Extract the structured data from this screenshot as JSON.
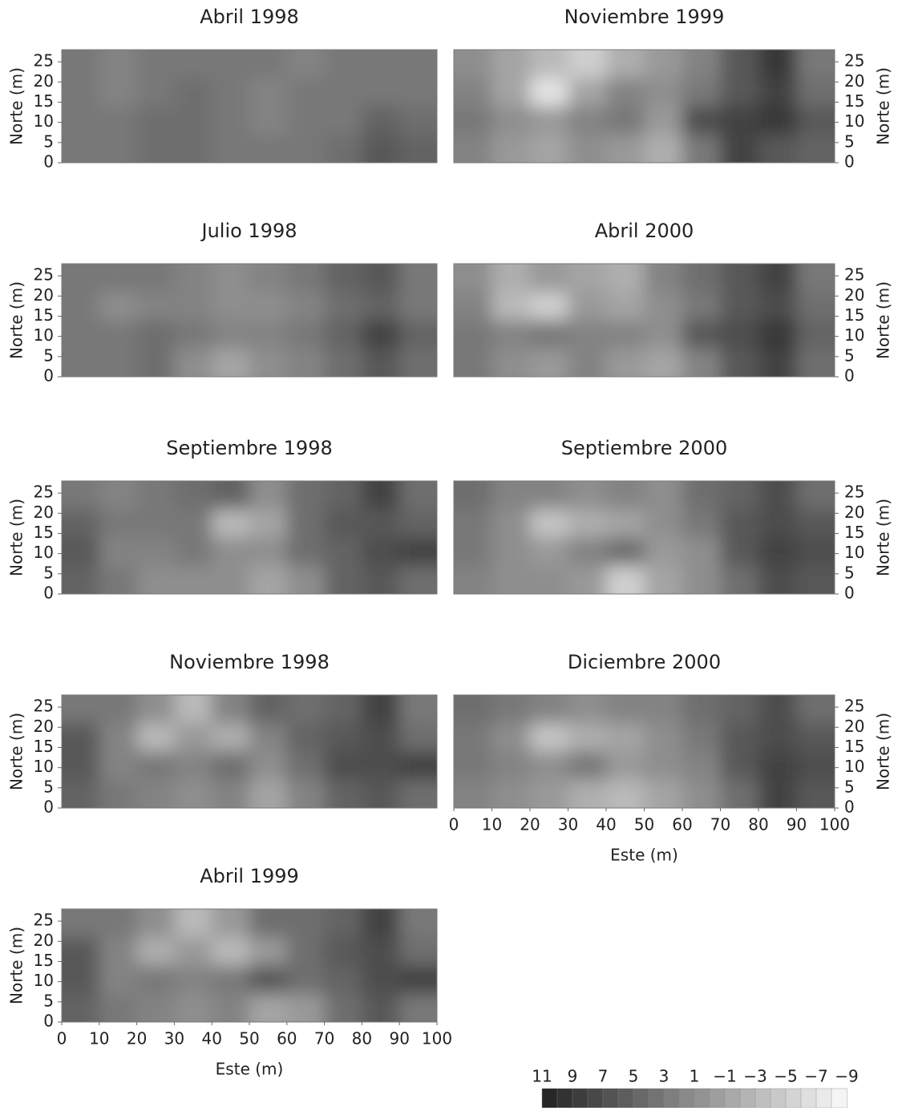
{
  "chart_data": [
    {
      "type": "contour",
      "title": "Abril 1998",
      "ylabel": "Norte (m)",
      "yaxis_side": "left",
      "xlim": [
        0,
        100
      ],
      "ylim": [
        0,
        28
      ],
      "yticks": [
        0,
        5,
        10,
        15,
        20,
        25
      ],
      "z": [
        [
          3,
          2,
          3,
          3,
          3,
          3,
          2,
          3,
          3,
          3
        ],
        [
          3,
          2,
          3,
          4,
          3,
          2,
          3,
          3,
          3,
          3
        ],
        [
          3,
          3,
          4,
          4,
          3,
          2,
          3,
          3,
          5,
          4
        ],
        [
          3,
          3,
          4,
          4,
          3,
          3,
          3,
          4,
          6,
          5
        ]
      ]
    },
    {
      "type": "contour",
      "title": "Julio 1998",
      "ylabel": "Norte (m)",
      "yaxis_side": "left",
      "xlim": [
        0,
        100
      ],
      "ylim": [
        0,
        28
      ],
      "yticks": [
        0,
        5,
        10,
        15,
        20,
        25
      ],
      "z": [
        [
          3,
          3,
          3,
          2,
          1,
          2,
          3,
          5,
          6,
          3
        ],
        [
          3,
          1,
          2,
          2,
          1,
          1,
          2,
          4,
          5,
          3
        ],
        [
          3,
          3,
          4,
          3,
          2,
          2,
          3,
          5,
          8,
          5
        ],
        [
          3,
          3,
          4,
          1,
          -1,
          1,
          2,
          4,
          6,
          4
        ]
      ]
    },
    {
      "type": "contour",
      "title": "Septiembre 1998",
      "ylabel": "Norte (m)",
      "yaxis_side": "left",
      "xlim": [
        0,
        100
      ],
      "ylim": [
        0,
        28
      ],
      "yticks": [
        0,
        5,
        10,
        15,
        20,
        25
      ],
      "z": [
        [
          3,
          2,
          3,
          4,
          5,
          1,
          4,
          5,
          8,
          4
        ],
        [
          5,
          3,
          3,
          3,
          -3,
          -1,
          4,
          6,
          6,
          5
        ],
        [
          6,
          2,
          2,
          3,
          1,
          1,
          4,
          5,
          7,
          8
        ],
        [
          5,
          3,
          1,
          1,
          1,
          -1,
          1,
          5,
          6,
          4
        ]
      ]
    },
    {
      "type": "contour",
      "title": "Noviembre 1998",
      "ylabel": "Norte (m)",
      "yaxis_side": "left",
      "xlim": [
        0,
        100
      ],
      "ylim": [
        0,
        28
      ],
      "yticks": [
        0,
        5,
        10,
        15,
        20,
        25
      ],
      "z": [
        [
          3,
          3,
          1,
          -3,
          2,
          5,
          4,
          5,
          8,
          3
        ],
        [
          6,
          2,
          -3,
          0,
          -2,
          2,
          5,
          6,
          7,
          4
        ],
        [
          6,
          2,
          3,
          2,
          4,
          1,
          4,
          7,
          7,
          8
        ],
        [
          5,
          3,
          2,
          1,
          2,
          -1,
          2,
          5,
          6,
          4
        ]
      ]
    },
    {
      "type": "contour",
      "title": "Abril 1999",
      "ylabel": "Norte (m)",
      "xlabel": "Este (m)",
      "yaxis_side": "left",
      "xlim": [
        0,
        100
      ],
      "ylim": [
        0,
        28
      ],
      "yticks": [
        0,
        5,
        10,
        15,
        20,
        25
      ],
      "xticks": [
        0,
        10,
        20,
        30,
        40,
        50,
        60,
        70,
        80,
        90,
        100
      ],
      "z": [
        [
          3,
          3,
          1,
          -3,
          0,
          4,
          4,
          5,
          8,
          3
        ],
        [
          6,
          2,
          -2,
          0,
          -3,
          0,
          4,
          6,
          7,
          4
        ],
        [
          6,
          2,
          3,
          2,
          3,
          6,
          4,
          5,
          7,
          8
        ],
        [
          5,
          3,
          2,
          1,
          2,
          -1,
          0,
          4,
          6,
          3
        ]
      ]
    },
    {
      "type": "contour",
      "title": "Noviembre 1999",
      "ylabel": "Norte (m)",
      "yaxis_side": "right",
      "xlim": [
        0,
        100
      ],
      "ylim": [
        0,
        28
      ],
      "yticks": [
        0,
        5,
        10,
        15,
        20,
        25
      ],
      "z": [
        [
          1,
          -1,
          -3,
          -5,
          -2,
          0,
          2,
          6,
          9,
          3
        ],
        [
          2,
          -1,
          -7,
          -1,
          2,
          1,
          3,
          6,
          8,
          4
        ],
        [
          3,
          1,
          0,
          2,
          3,
          0,
          7,
          8,
          9,
          6
        ],
        [
          2,
          0,
          -1,
          1,
          0,
          -2,
          3,
          8,
          6,
          5
        ]
      ]
    },
    {
      "type": "contour",
      "title": "Abril 2000",
      "ylabel": "Norte (m)",
      "yaxis_side": "right",
      "xlim": [
        0,
        100
      ],
      "ylim": [
        0,
        28
      ],
      "yticks": [
        0,
        5,
        10,
        15,
        20,
        25
      ],
      "z": [
        [
          1,
          -2,
          0,
          -1,
          -2,
          2,
          4,
          6,
          8,
          3
        ],
        [
          2,
          -3,
          -5,
          0,
          -1,
          1,
          3,
          6,
          7,
          4
        ],
        [
          3,
          2,
          3,
          2,
          2,
          1,
          6,
          7,
          9,
          5
        ],
        [
          3,
          1,
          0,
          2,
          0,
          -1,
          2,
          6,
          8,
          4
        ]
      ]
    },
    {
      "type": "contour",
      "title": "Septiembre 2000",
      "ylabel": "Norte (m)",
      "yaxis_side": "right",
      "xlim": [
        0,
        100
      ],
      "ylim": [
        0,
        28
      ],
      "yticks": [
        0,
        5,
        10,
        15,
        20,
        25
      ],
      "z": [
        [
          4,
          2,
          2,
          1,
          2,
          1,
          4,
          5,
          7,
          4
        ],
        [
          3,
          1,
          -4,
          -2,
          -1,
          1,
          3,
          6,
          7,
          6
        ],
        [
          3,
          1,
          0,
          2,
          4,
          0,
          1,
          6,
          8,
          7
        ],
        [
          2,
          1,
          1,
          0,
          -5,
          -1,
          1,
          4,
          7,
          6
        ]
      ]
    },
    {
      "type": "contour",
      "title": "Diciembre 2000",
      "ylabel": "Norte (m)",
      "xlabel": "Este (m)",
      "yaxis_side": "right",
      "xlim": [
        0,
        100
      ],
      "ylim": [
        0,
        28
      ],
      "yticks": [
        0,
        5,
        10,
        15,
        20,
        25
      ],
      "xticks": [
        0,
        10,
        20,
        30,
        40,
        50,
        60,
        70,
        80,
        90,
        100
      ],
      "z": [
        [
          4,
          3,
          2,
          1,
          2,
          2,
          4,
          5,
          7,
          4
        ],
        [
          3,
          1,
          -4,
          -2,
          -1,
          1,
          3,
          6,
          7,
          6
        ],
        [
          3,
          2,
          1,
          3,
          0,
          1,
          2,
          6,
          8,
          7
        ],
        [
          2,
          1,
          0,
          -2,
          -3,
          -1,
          1,
          4,
          8,
          6
        ]
      ]
    },
    {
      "type": "colorbar",
      "ticks": [
        11,
        9,
        7,
        5,
        3,
        1,
        {
          "value": -1,
          "label": "−1"
        },
        {
          "value": -3,
          "label": "−3"
        },
        {
          "value": -5,
          "label": "−5"
        },
        {
          "value": -7,
          "label": "−7"
        },
        {
          "value": -9,
          "label": "−9"
        }
      ]
    }
  ]
}
